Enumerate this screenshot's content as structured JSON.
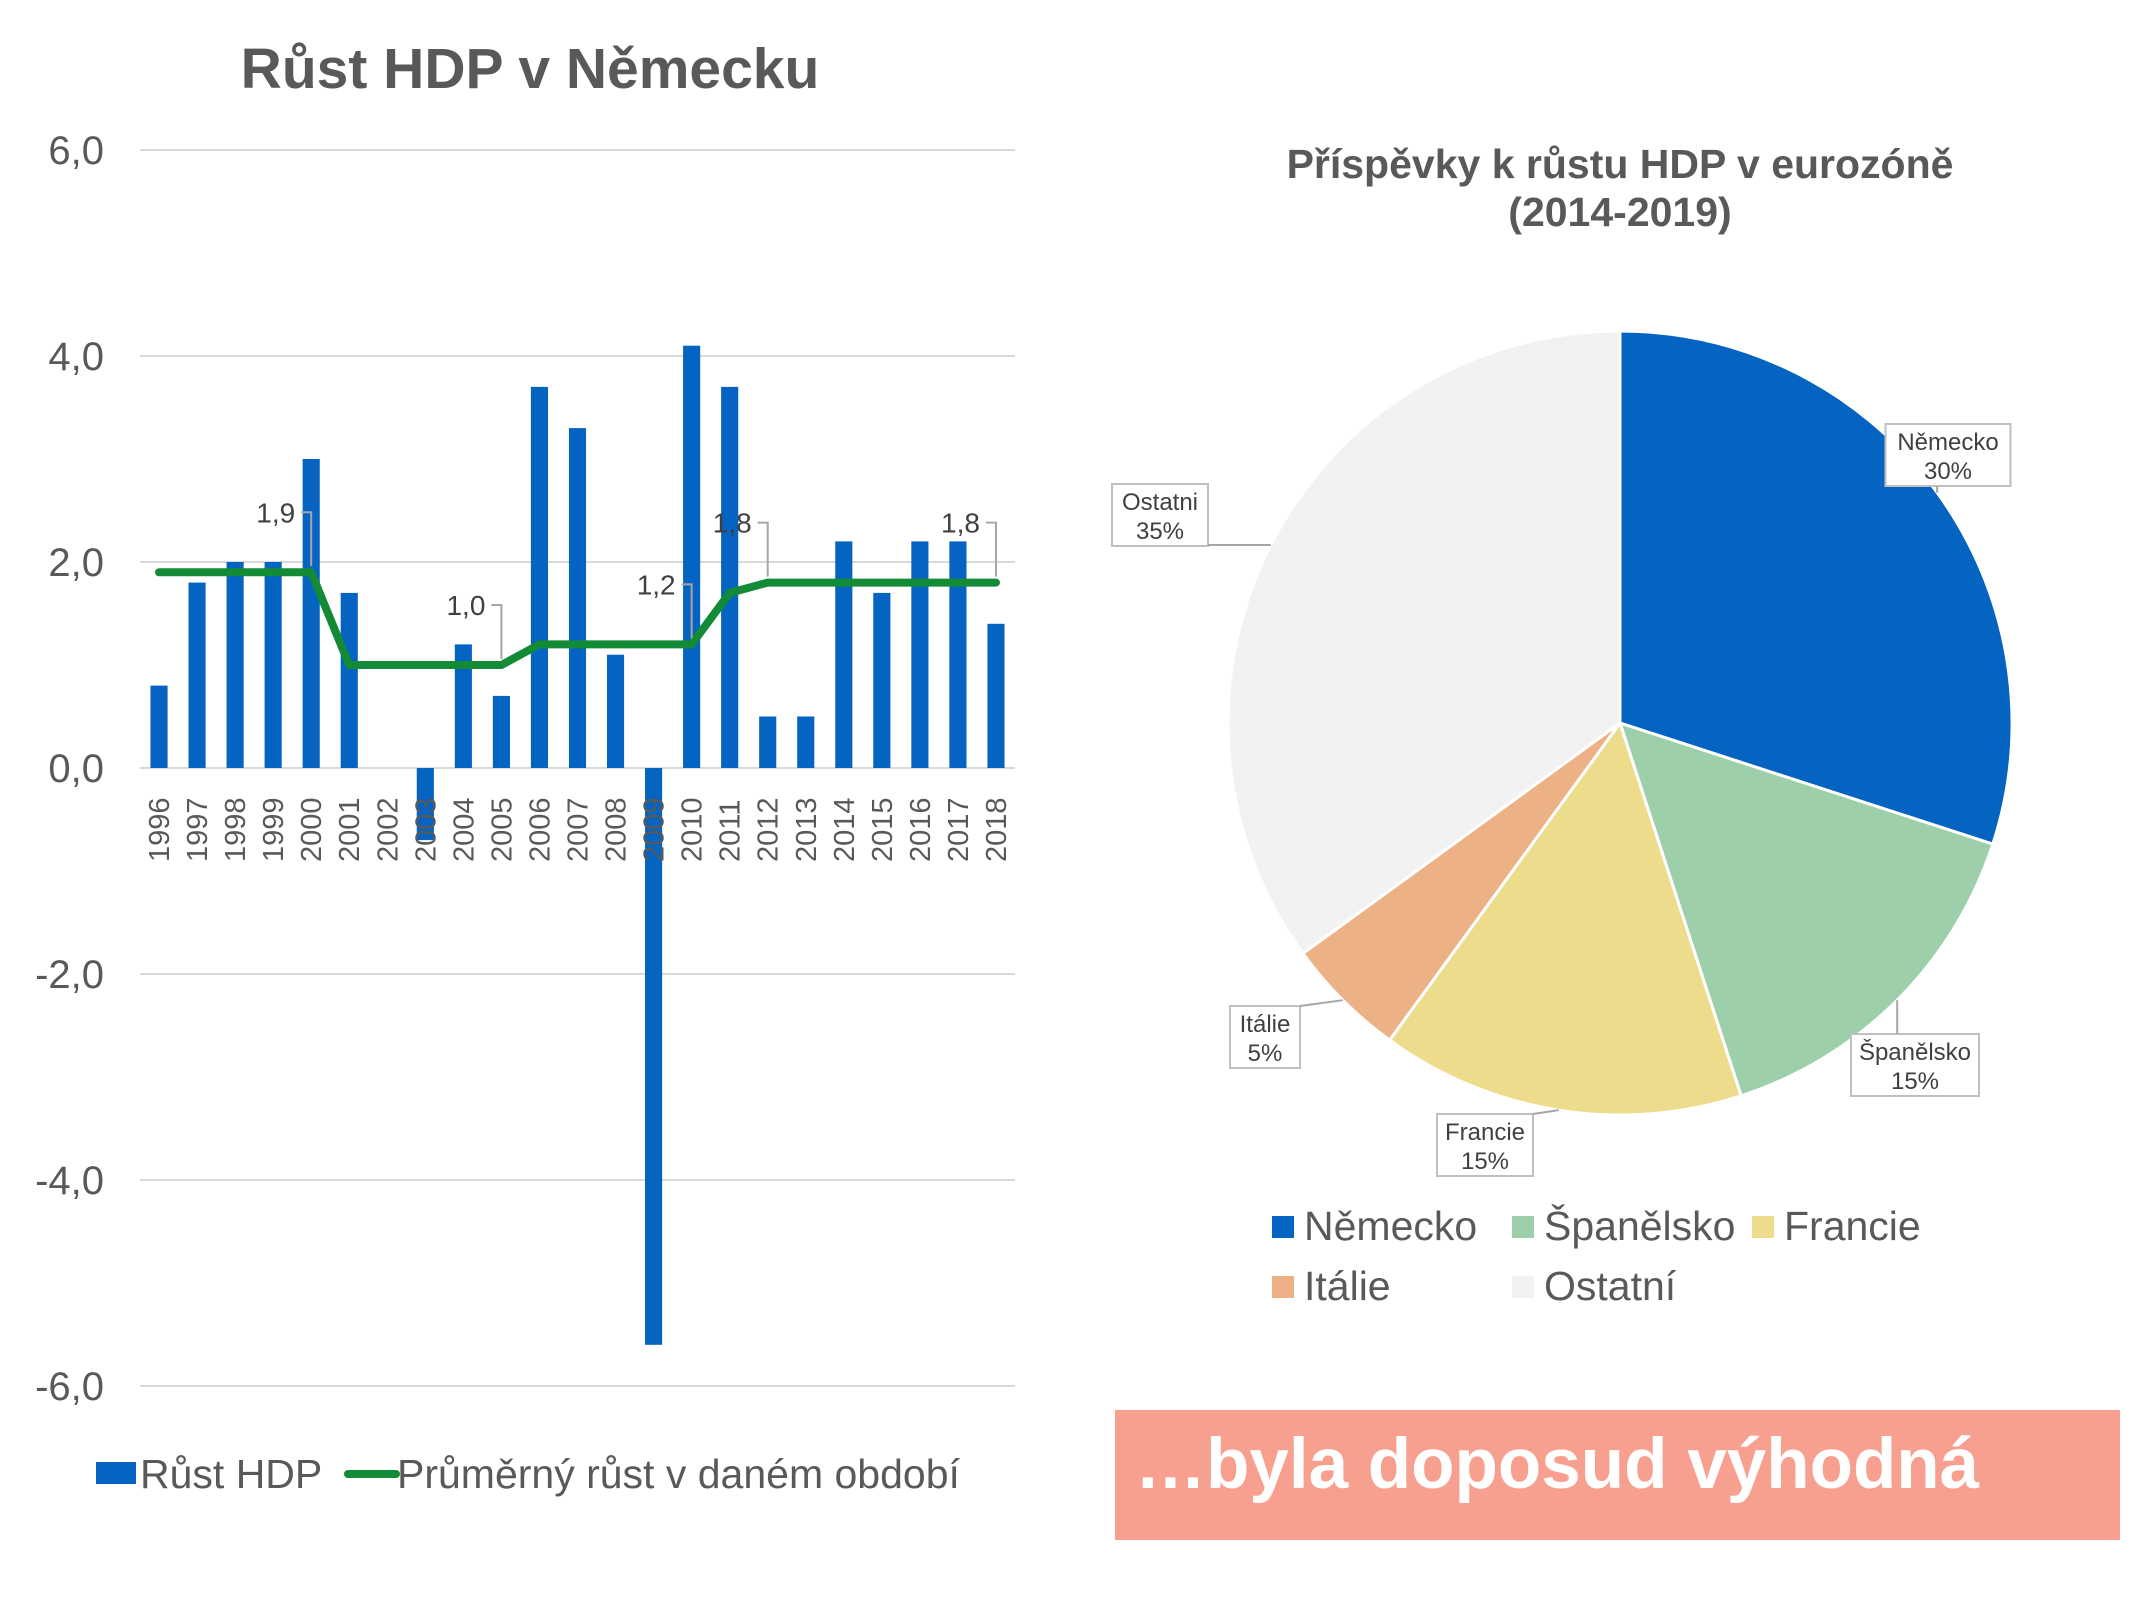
{
  "colors": {
    "bar": "#0563c1",
    "avg_line": "#138a36",
    "grid": "#d9d9d9",
    "text": "#595959",
    "banner_bg": "#f8a08f",
    "banner_text": "#ffffff",
    "pie": [
      "#0563c1",
      "#9dcfaa",
      "#ecdc8c",
      "#ecb184",
      "#f2f2f2"
    ]
  },
  "banner": {
    "text": "…byla doposud výhodná"
  },
  "chart_data": [
    {
      "type": "bar",
      "title": "Růst HDP v Německu",
      "categories": [
        "1996",
        "1997",
        "1998",
        "1999",
        "2000",
        "2001",
        "2002",
        "2003",
        "2004",
        "2005",
        "2006",
        "2007",
        "2008",
        "2009",
        "2010",
        "2011",
        "2012",
        "2013",
        "2014",
        "2015",
        "2016",
        "2017",
        "2018"
      ],
      "series": [
        {
          "name": "Růst HDP",
          "kind": "bar",
          "values": [
            0.8,
            1.8,
            2.0,
            2.0,
            3.0,
            1.7,
            0.0,
            -0.7,
            1.2,
            0.7,
            3.7,
            3.3,
            1.1,
            -5.6,
            4.1,
            3.7,
            0.5,
            0.5,
            2.2,
            1.7,
            2.2,
            2.2,
            1.4
          ]
        },
        {
          "name": "Průměrný růst v daném období",
          "kind": "line",
          "values": [
            1.9,
            1.9,
            1.9,
            1.9,
            1.9,
            1.0,
            1.0,
            1.0,
            1.0,
            1.0,
            1.2,
            1.2,
            1.2,
            1.2,
            1.2,
            1.7,
            1.8,
            1.8,
            1.8,
            1.8,
            1.8,
            1.8,
            1.8
          ]
        }
      ],
      "data_labels": [
        {
          "index": 4,
          "text": "1,9"
        },
        {
          "index": 9,
          "text": "1,0"
        },
        {
          "index": 14,
          "text": "1,2"
        },
        {
          "index": 16,
          "text": "1,8"
        },
        {
          "index": 22,
          "text": "1,8"
        }
      ],
      "yticks": [
        "6,0",
        "4,0",
        "2,0",
        "0,0",
        "-2,0",
        "-4,0",
        "-6,0"
      ],
      "ytick_values": [
        6,
        4,
        2,
        0,
        -2,
        -4,
        -6
      ],
      "ylim": [
        -6,
        6
      ],
      "grid": true,
      "legend_position": "bottom",
      "legend": [
        "Růst HDP",
        "Průměrný růst v daném období"
      ]
    },
    {
      "type": "pie",
      "title_line1": "Příspěvky k růstu HDP v eurozóně",
      "title_line2": "(2014-2019)",
      "slices": [
        {
          "label": "Německo",
          "value": 30,
          "text": "30%",
          "callout": "Německo"
        },
        {
          "label": "Španělsko",
          "value": 15,
          "text": "15%",
          "callout": "Španělsko"
        },
        {
          "label": "Francie",
          "value": 15,
          "text": "15%",
          "callout": "Francie"
        },
        {
          "label": "Itálie",
          "value": 5,
          "text": "5%",
          "callout": "Itálie"
        },
        {
          "label": "Ostatní",
          "value": 35,
          "text": "35%",
          "callout": "Ostatni"
        }
      ],
      "legend_position": "bottom"
    }
  ]
}
